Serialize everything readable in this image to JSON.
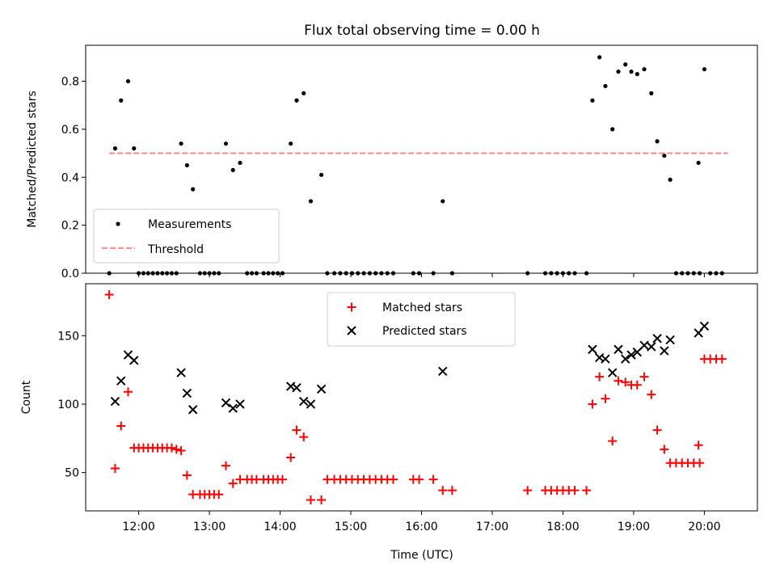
{
  "figure": {
    "title": "Flux total observing time = 0.00 h",
    "xlabel": "Time (UTC)"
  },
  "colors": {
    "measurements": "#000000",
    "threshold": "#ff7f7f",
    "matched": "#ff0000",
    "predicted": "#000000"
  },
  "chart_data": [
    {
      "type": "scatter",
      "panel": "top",
      "ylabel": "Matched/Predicted stars",
      "xlim": [
        "11:15",
        "20:45"
      ],
      "ylim": [
        0,
        0.95
      ],
      "x_ticks": [
        "12:00",
        "13:00",
        "14:00",
        "15:00",
        "16:00",
        "17:00",
        "18:00",
        "19:00",
        "20:00"
      ],
      "y_ticks": [
        "0.0",
        "0.2",
        "0.4",
        "0.6",
        "0.8"
      ],
      "legend": {
        "position": "lower-left",
        "entries": [
          "Measurements",
          "Threshold"
        ]
      },
      "series": [
        {
          "name": "Measurements",
          "marker": "dot",
          "points": [
            [
              "11:35",
              0
            ],
            [
              "11:40",
              0.52
            ],
            [
              "11:45",
              0.72
            ],
            [
              "11:51",
              0.8
            ],
            [
              "11:56",
              0.52
            ],
            [
              "12:00",
              0
            ],
            [
              "12:04",
              0
            ],
            [
              "12:08",
              0
            ],
            [
              "12:12",
              0
            ],
            [
              "12:16",
              0
            ],
            [
              "12:20",
              0
            ],
            [
              "12:24",
              0
            ],
            [
              "12:28",
              0
            ],
            [
              "12:32",
              0
            ],
            [
              "12:36",
              0.54
            ],
            [
              "12:41",
              0.45
            ],
            [
              "12:46",
              0.35
            ],
            [
              "12:52",
              0
            ],
            [
              "12:56",
              0
            ],
            [
              "13:00",
              0
            ],
            [
              "13:04",
              0
            ],
            [
              "13:08",
              0
            ],
            [
              "13:14",
              0.54
            ],
            [
              "13:20",
              0.43
            ],
            [
              "13:26",
              0.46
            ],
            [
              "13:32",
              0
            ],
            [
              "13:36",
              0
            ],
            [
              "13:40",
              0
            ],
            [
              "13:46",
              0
            ],
            [
              "13:50",
              0
            ],
            [
              "13:54",
              0
            ],
            [
              "13:58",
              0
            ],
            [
              "14:02",
              0
            ],
            [
              "14:09",
              0.54
            ],
            [
              "14:14",
              0.72
            ],
            [
              "14:20",
              0.75
            ],
            [
              "14:26",
              0.3
            ],
            [
              "14:35",
              0.41
            ],
            [
              "14:40",
              0
            ],
            [
              "14:46",
              0
            ],
            [
              "14:51",
              0
            ],
            [
              "14:56",
              0
            ],
            [
              "15:01",
              0
            ],
            [
              "15:06",
              0
            ],
            [
              "15:11",
              0
            ],
            [
              "15:16",
              0
            ],
            [
              "15:21",
              0
            ],
            [
              "15:26",
              0
            ],
            [
              "15:31",
              0
            ],
            [
              "15:36",
              0
            ],
            [
              "15:53",
              0
            ],
            [
              "15:58",
              0
            ],
            [
              "16:10",
              0
            ],
            [
              "16:18",
              0.3
            ],
            [
              "16:26",
              0
            ],
            [
              "17:30",
              0
            ],
            [
              "17:45",
              0
            ],
            [
              "17:50",
              0
            ],
            [
              "17:55",
              0
            ],
            [
              "18:00",
              0
            ],
            [
              "18:05",
              0
            ],
            [
              "18:10",
              0
            ],
            [
              "18:20",
              0
            ],
            [
              "18:25",
              0.72
            ],
            [
              "18:31",
              0.9
            ],
            [
              "18:36",
              0.78
            ],
            [
              "18:42",
              0.6
            ],
            [
              "18:47",
              0.84
            ],
            [
              "18:53",
              0.87
            ],
            [
              "18:58",
              0.84
            ],
            [
              "19:03",
              0.83
            ],
            [
              "19:09",
              0.85
            ],
            [
              "19:15",
              0.75
            ],
            [
              "19:20",
              0.55
            ],
            [
              "19:26",
              0.49
            ],
            [
              "19:31",
              0.39
            ],
            [
              "19:36",
              0
            ],
            [
              "19:41",
              0
            ],
            [
              "19:46",
              0
            ],
            [
              "19:51",
              0
            ],
            [
              "19:56",
              0
            ],
            [
              "19:55",
              0.46
            ],
            [
              "20:00",
              0.85
            ],
            [
              "20:05",
              0
            ],
            [
              "20:10",
              0
            ],
            [
              "20:15",
              0
            ]
          ]
        },
        {
          "name": "Threshold",
          "style": "dashed-line",
          "points": [
            [
              "11:35",
              0.5
            ],
            [
              "20:20",
              0.5
            ]
          ]
        }
      ]
    },
    {
      "type": "scatter",
      "panel": "bottom",
      "ylabel": "Count",
      "xlim": [
        "11:15",
        "20:45"
      ],
      "ylim": [
        22,
        188
      ],
      "x_ticks": [
        "12:00",
        "13:00",
        "14:00",
        "15:00",
        "16:00",
        "17:00",
        "18:00",
        "19:00",
        "20:00"
      ],
      "y_ticks": [
        "50",
        "100",
        "150"
      ],
      "legend": {
        "position": "upper-center",
        "entries": [
          "Matched stars",
          "Predicted stars"
        ]
      },
      "series": [
        {
          "name": "Matched stars",
          "marker": "plus",
          "points": [
            [
              "11:35",
              180
            ],
            [
              "11:40",
              53
            ],
            [
              "11:45",
              84
            ],
            [
              "11:51",
              109
            ],
            [
              "11:56",
              68
            ],
            [
              "12:00",
              68
            ],
            [
              "12:04",
              68
            ],
            [
              "12:08",
              68
            ],
            [
              "12:12",
              68
            ],
            [
              "12:16",
              68
            ],
            [
              "12:20",
              68
            ],
            [
              "12:24",
              68
            ],
            [
              "12:28",
              68
            ],
            [
              "12:32",
              67
            ],
            [
              "12:36",
              66
            ],
            [
              "12:41",
              48
            ],
            [
              "12:46",
              34
            ],
            [
              "12:52",
              34
            ],
            [
              "12:56",
              34
            ],
            [
              "13:00",
              34
            ],
            [
              "13:04",
              34
            ],
            [
              "13:08",
              34
            ],
            [
              "13:14",
              55
            ],
            [
              "13:20",
              42
            ],
            [
              "13:26",
              45
            ],
            [
              "13:32",
              45
            ],
            [
              "13:36",
              45
            ],
            [
              "13:40",
              45
            ],
            [
              "13:46",
              45
            ],
            [
              "13:50",
              45
            ],
            [
              "13:54",
              45
            ],
            [
              "13:58",
              45
            ],
            [
              "14:02",
              45
            ],
            [
              "14:09",
              61
            ],
            [
              "14:14",
              81
            ],
            [
              "14:20",
              76
            ],
            [
              "14:26",
              30
            ],
            [
              "14:35",
              30
            ],
            [
              "14:40",
              45
            ],
            [
              "14:46",
              45
            ],
            [
              "14:51",
              45
            ],
            [
              "14:56",
              45
            ],
            [
              "15:01",
              45
            ],
            [
              "15:06",
              45
            ],
            [
              "15:11",
              45
            ],
            [
              "15:16",
              45
            ],
            [
              "15:21",
              45
            ],
            [
              "15:26",
              45
            ],
            [
              "15:31",
              45
            ],
            [
              "15:36",
              45
            ],
            [
              "15:53",
              45
            ],
            [
              "15:58",
              45
            ],
            [
              "16:10",
              45
            ],
            [
              "16:18",
              37
            ],
            [
              "16:26",
              37
            ],
            [
              "17:30",
              37
            ],
            [
              "17:45",
              37
            ],
            [
              "17:50",
              37
            ],
            [
              "17:55",
              37
            ],
            [
              "18:00",
              37
            ],
            [
              "18:05",
              37
            ],
            [
              "18:10",
              37
            ],
            [
              "18:20",
              37
            ],
            [
              "18:25",
              100
            ],
            [
              "18:31",
              120
            ],
            [
              "18:36",
              104
            ],
            [
              "18:42",
              73
            ],
            [
              "18:47",
              117
            ],
            [
              "18:53",
              116
            ],
            [
              "18:58",
              114
            ],
            [
              "19:03",
              114
            ],
            [
              "19:09",
              120
            ],
            [
              "19:15",
              107
            ],
            [
              "19:20",
              81
            ],
            [
              "19:26",
              67
            ],
            [
              "19:31",
              57
            ],
            [
              "19:36",
              57
            ],
            [
              "19:41",
              57
            ],
            [
              "19:46",
              57
            ],
            [
              "19:51",
              57
            ],
            [
              "19:56",
              57
            ],
            [
              "19:55",
              70
            ],
            [
              "20:00",
              133
            ],
            [
              "20:05",
              133
            ],
            [
              "20:10",
              133
            ],
            [
              "20:15",
              133
            ]
          ]
        },
        {
          "name": "Predicted stars",
          "marker": "cross",
          "points": [
            [
              "11:40",
              102
            ],
            [
              "11:45",
              117
            ],
            [
              "11:51",
              136
            ],
            [
              "11:56",
              132
            ],
            [
              "12:36",
              123
            ],
            [
              "12:41",
              108
            ],
            [
              "12:46",
              96
            ],
            [
              "13:14",
              101
            ],
            [
              "13:20",
              97
            ],
            [
              "13:26",
              100
            ],
            [
              "14:09",
              113
            ],
            [
              "14:14",
              112
            ],
            [
              "14:20",
              102
            ],
            [
              "14:26",
              100
            ],
            [
              "14:35",
              111
            ],
            [
              "16:18",
              124
            ],
            [
              "18:25",
              140
            ],
            [
              "18:31",
              134
            ],
            [
              "18:36",
              133
            ],
            [
              "18:42",
              123
            ],
            [
              "18:47",
              140
            ],
            [
              "18:53",
              133
            ],
            [
              "18:58",
              136
            ],
            [
              "19:03",
              138
            ],
            [
              "19:09",
              143
            ],
            [
              "19:15",
              142
            ],
            [
              "19:20",
              148
            ],
            [
              "19:26",
              139
            ],
            [
              "19:31",
              147
            ],
            [
              "19:55",
              152
            ],
            [
              "20:00",
              157
            ]
          ]
        }
      ]
    }
  ]
}
